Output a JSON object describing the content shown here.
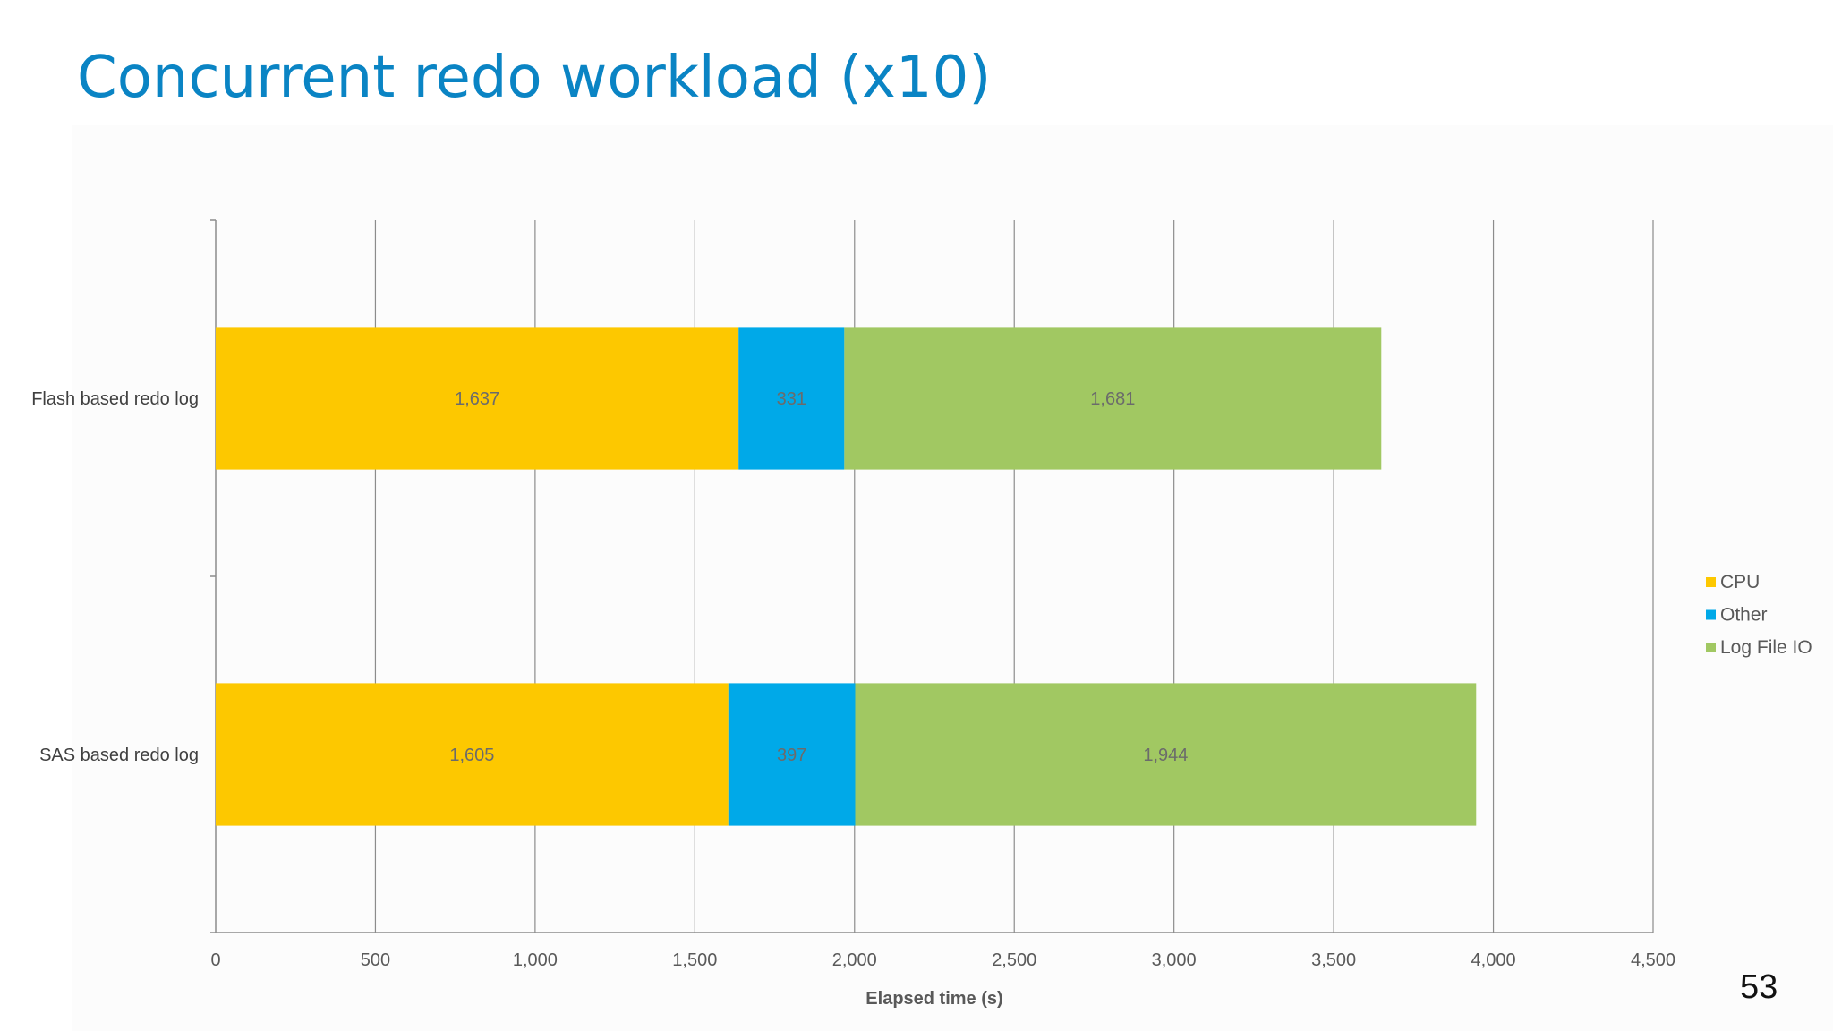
{
  "slide": {
    "title": "Concurrent redo workload (x10)",
    "page_number": "53"
  },
  "chart_data": {
    "type": "bar",
    "orientation": "horizontal",
    "stacked": true,
    "categories": [
      "Flash based redo log",
      "SAS based redo log"
    ],
    "series": [
      {
        "name": "CPU",
        "values": [
          1637,
          1605
        ],
        "labels": [
          "1,637",
          "1,605"
        ],
        "color": "#fdc800"
      },
      {
        "name": "Other",
        "values": [
          331,
          397
        ],
        "labels": [
          "331",
          "397"
        ],
        "color": "#00a9e8"
      },
      {
        "name": "Log File IO",
        "values": [
          1681,
          1944
        ],
        "labels": [
          "1,681",
          "1,944"
        ],
        "color": "#a1c862"
      }
    ],
    "xlabel": "Elapsed time (s)",
    "ylabel": "",
    "xlim": [
      0,
      4500
    ],
    "xticks": [
      0,
      500,
      1000,
      1500,
      2000,
      2500,
      3000,
      3500,
      4000,
      4500
    ],
    "xtick_labels": [
      "0",
      "500",
      "1,000",
      "1,500",
      "2,000",
      "2,500",
      "3,000",
      "3,500",
      "4,000",
      "4,500"
    ],
    "grid": "vertical",
    "legend_position": "right"
  }
}
